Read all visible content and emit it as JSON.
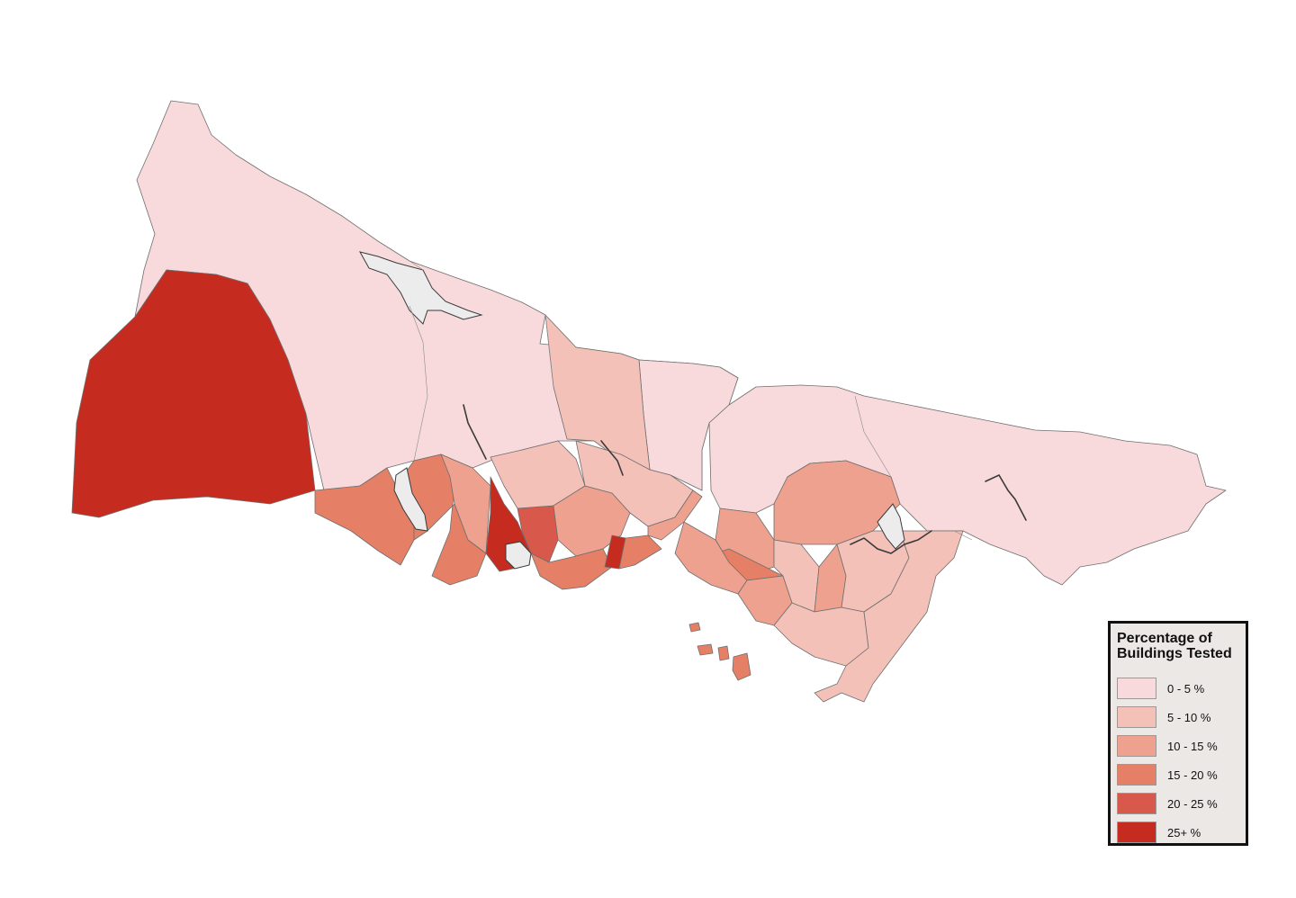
{
  "legend": {
    "title": "Percentage of Buildings Tested",
    "items": [
      {
        "label": "0 - 5 %",
        "color": "#f9dadc"
      },
      {
        "label": "5 - 10 %",
        "color": "#f3c1b8"
      },
      {
        "label": "10 - 15 %",
        "color": "#eda18e"
      },
      {
        "label": "15 - 20 %",
        "color": "#e58067"
      },
      {
        "label": "20 - 25 %",
        "color": "#d8594b"
      },
      {
        "label": "25+ %",
        "color": "#c62b1f"
      }
    ]
  },
  "colors": {
    "no_data": "#ececec",
    "background": "#ffffff",
    "border": "#6e6e6e"
  }
}
